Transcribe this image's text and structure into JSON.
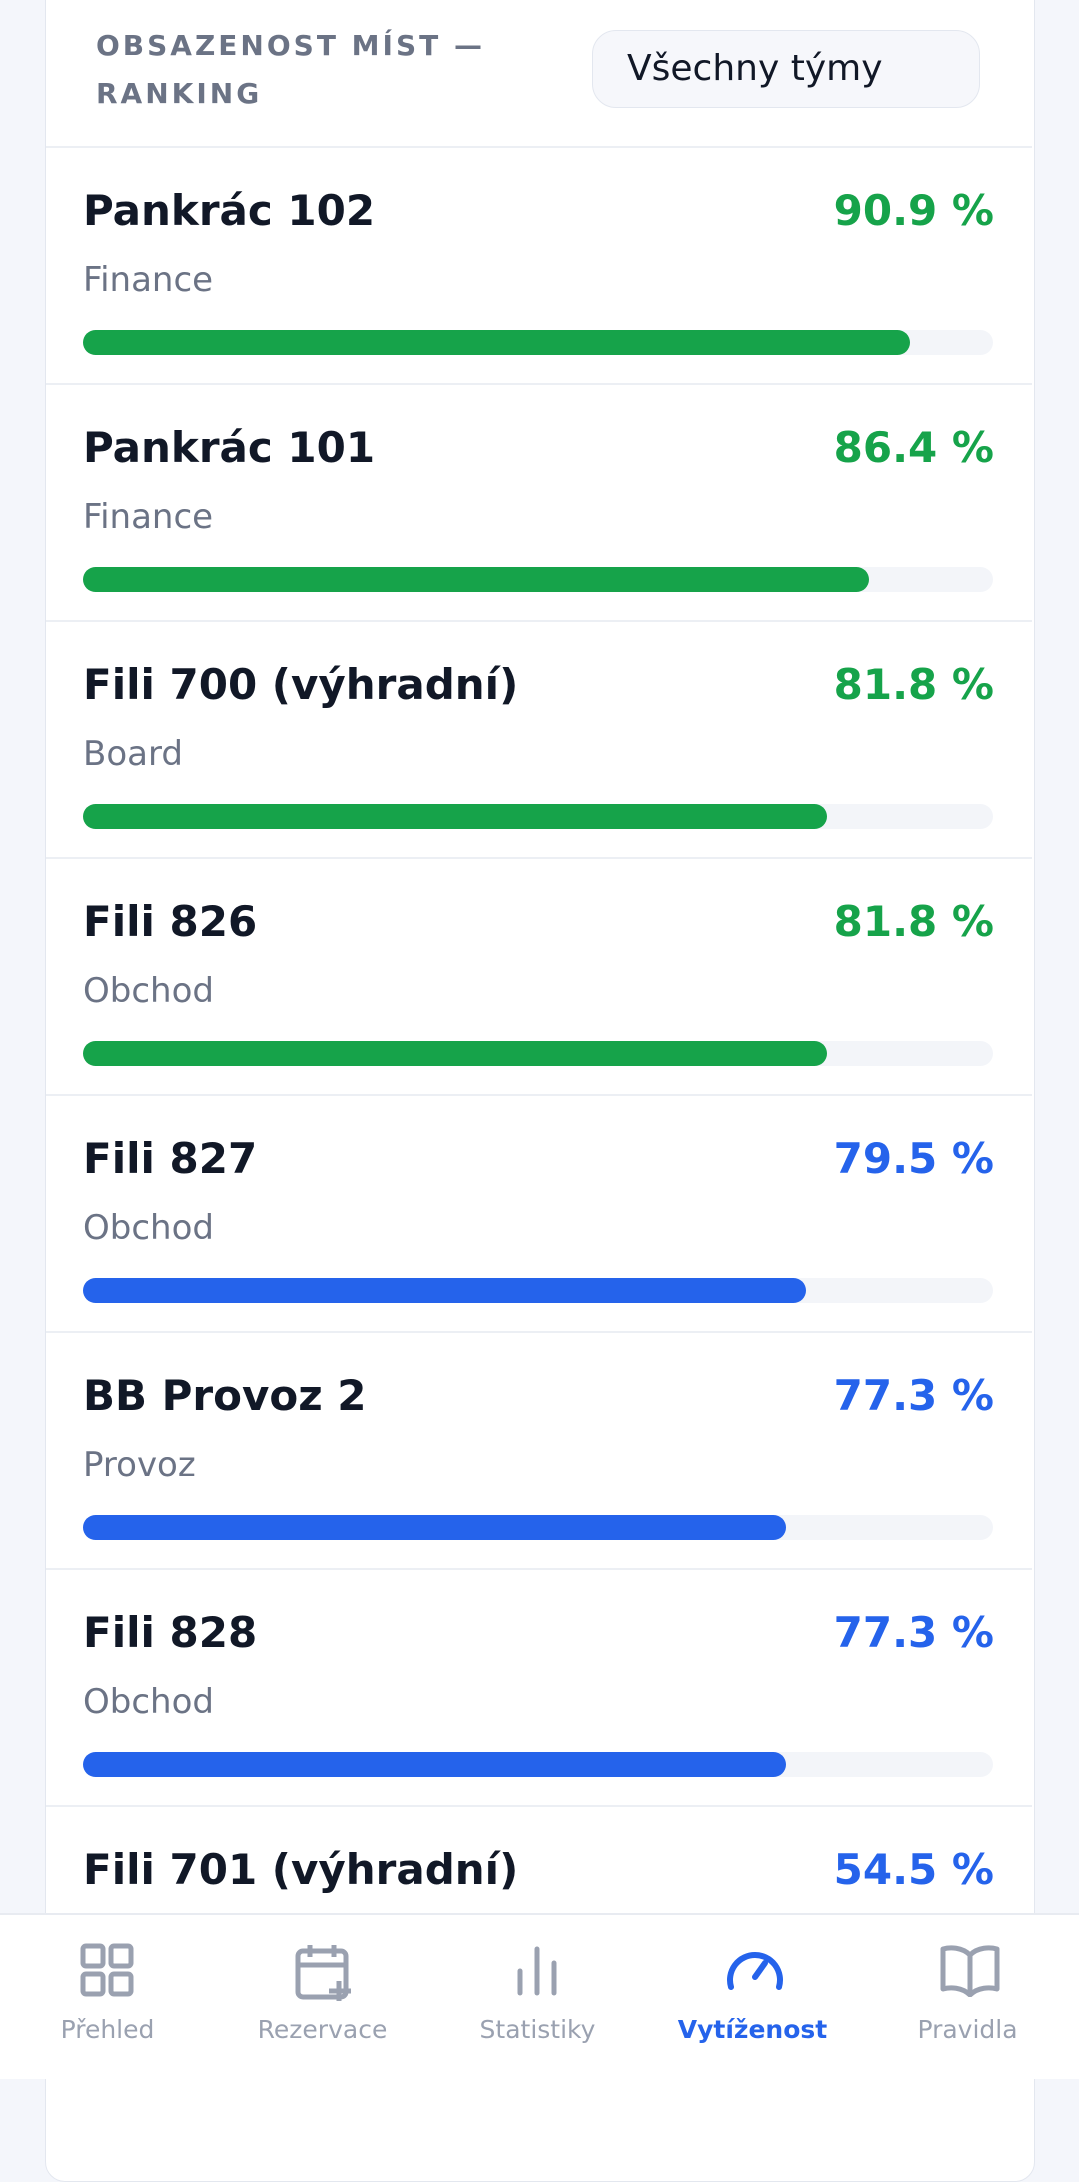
{
  "header": {
    "title": "OBSAZENOST MÍST — RANKING",
    "filter": "Všechny týmy"
  },
  "items": [
    {
      "name": "Pankrác 102",
      "team": "Finance",
      "value": 90.9,
      "value_label": "90.9 %",
      "color": "#16a34a"
    },
    {
      "name": "Pankrác 101",
      "team": "Finance",
      "value": 86.4,
      "value_label": "86.4 %",
      "color": "#16a34a"
    },
    {
      "name": "Fili 700 (výhradní)",
      "team": "Board",
      "value": 81.8,
      "value_label": "81.8 %",
      "color": "#16a34a"
    },
    {
      "name": "Fili 826",
      "team": "Obchod",
      "value": 81.8,
      "value_label": "81.8 %",
      "color": "#16a34a"
    },
    {
      "name": "Fili 827",
      "team": "Obchod",
      "value": 79.5,
      "value_label": "79.5 %",
      "color": "#2563eb"
    },
    {
      "name": "BB Provoz 2",
      "team": "Provoz",
      "value": 77.3,
      "value_label": "77.3 %",
      "color": "#2563eb"
    },
    {
      "name": "Fili 828",
      "team": "Obchod",
      "value": 77.3,
      "value_label": "77.3 %",
      "color": "#2563eb"
    },
    {
      "name": "Fili 701 (výhradní)",
      "team": null,
      "value": 54.5,
      "value_label": "54.5 %",
      "color": "#2563eb"
    }
  ],
  "scale_max": 100,
  "nav": [
    {
      "label": "Přehled"
    },
    {
      "label": "Rezervace"
    },
    {
      "label": "Statistiky"
    },
    {
      "label": "Vytíženost",
      "active": true
    },
    {
      "label": "Pravidla"
    }
  ]
}
